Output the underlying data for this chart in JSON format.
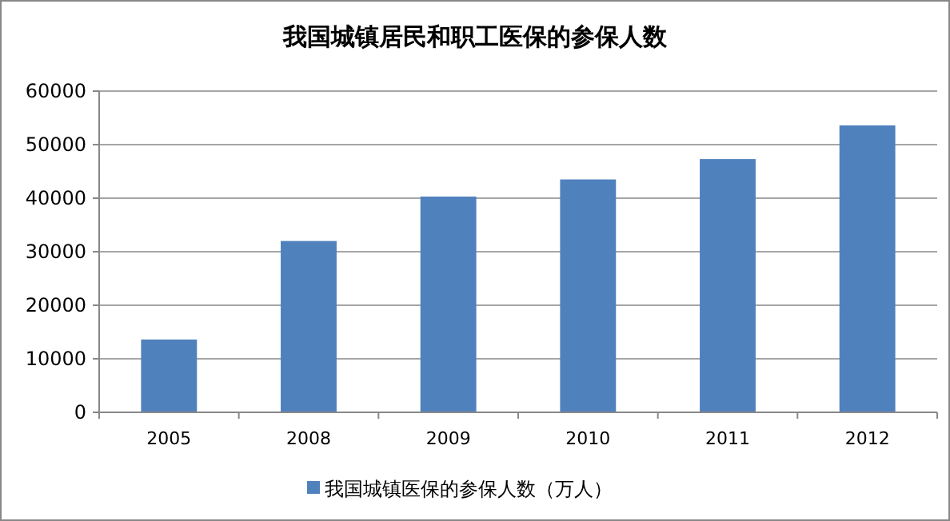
{
  "chart_data": {
    "type": "bar",
    "title": "我国城镇居民和职工医保的参保人数",
    "categories": [
      "2005",
      "2008",
      "2009",
      "2010",
      "2011",
      "2012"
    ],
    "series": [
      {
        "name": "我国城镇医保的参保人数（万人）",
        "color": "#4f81bd",
        "values": [
          13600,
          32000,
          40300,
          43500,
          47300,
          53600
        ]
      }
    ],
    "ylim": [
      0,
      60000
    ],
    "yticks": [
      0,
      10000,
      20000,
      30000,
      40000,
      50000,
      60000
    ],
    "grid": "y",
    "legend": "bottom"
  }
}
